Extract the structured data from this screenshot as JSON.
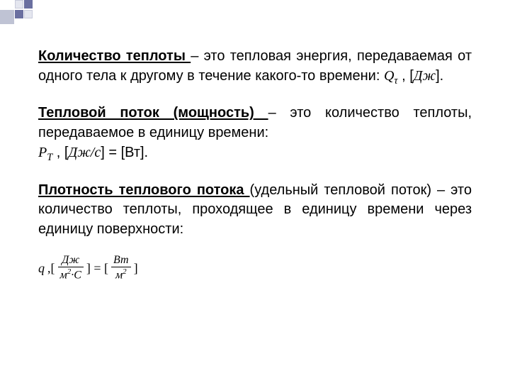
{
  "colors": {
    "background": "#ffffff",
    "text": "#000000",
    "ornament_light": "#e4e6ef",
    "ornament_mid": "#bfc3d4",
    "ornament_dark": "#6a6fa0"
  },
  "typography": {
    "body_family": "Arial",
    "body_size_pt": 15,
    "math_family": "Times New Roman",
    "line_height": 1.38,
    "term_weight": "bold",
    "term_underline": true,
    "justify": true
  },
  "definitions": {
    "heat_quantity": {
      "term": "Количество теплоты ",
      "dash": "–",
      "body_before_formula": " это тепловая энергия, передаваемая от одного тела к другому в течение какого-то времени: ",
      "symbol": "Q",
      "subscript": "τ",
      "unit_bracketed": " , [Дж].",
      "unit_italic": "Дж"
    },
    "heat_flow": {
      "term": "Тепловой поток (мощность) ",
      "dash": "–",
      "body": " это количество теплоты, передаваемое в единицу времени:",
      "symbol": "P",
      "subscript": "T",
      "unit_line_prefix": " , [",
      "unit_italic": "Дж/с",
      "unit_line_mid": "] = [Вт]."
    },
    "heat_flux_density": {
      "term": "Плотность теплового потока ",
      "paren": "(удельный тепловой поток) ",
      "dash": "–",
      "body": " это количество теплоты, проходящее в единицу времени через единицу поверхности:"
    }
  },
  "equation": {
    "lhs_symbol": "q",
    "comma_open": ",[",
    "frac1_num": "Дж",
    "frac1_den_left": "м",
    "frac1_den_exp": "2",
    "frac1_den_dot": "·",
    "frac1_den_right": "С",
    "mid": "] = [",
    "frac2_num": "Вт",
    "frac2_den_left": "м",
    "frac2_den_exp": "2",
    "close": "]"
  }
}
